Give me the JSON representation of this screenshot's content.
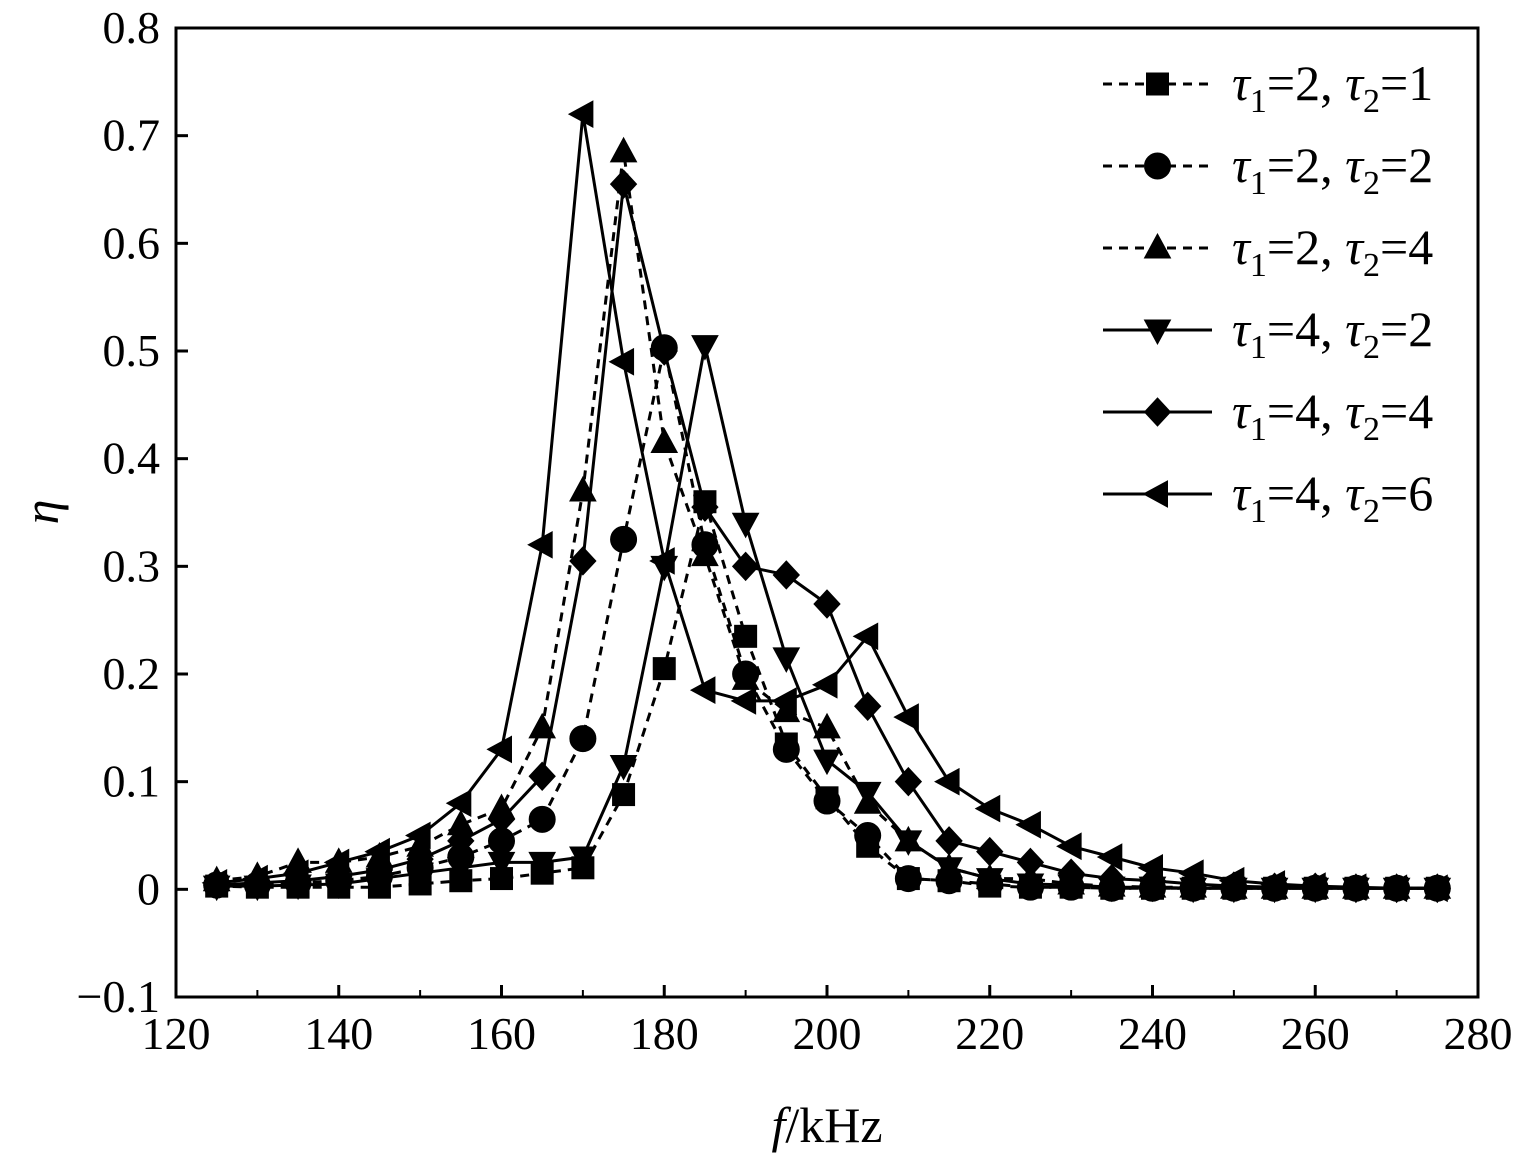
{
  "chart_data": {
    "type": "line",
    "title": "",
    "xlabel_var": "f",
    "xlabel_unit": "/kHz",
    "ylabel": "η",
    "xlim": [
      120,
      280
    ],
    "ylim": [
      -0.1,
      0.8
    ],
    "x_ticks": [
      "120",
      "140",
      "160",
      "180",
      "200",
      "220",
      "240",
      "260",
      "280"
    ],
    "y_ticks": [
      "−0.1",
      "0",
      "0.1",
      "0.2",
      "0.3",
      "0.4",
      "0.5",
      "0.6",
      "0.7",
      "0.8"
    ],
    "grid": false,
    "legend_position": "top-right",
    "x": [
      125,
      130,
      135,
      140,
      145,
      150,
      155,
      160,
      165,
      170,
      175,
      180,
      185,
      190,
      195,
      200,
      205,
      210,
      215,
      220,
      225,
      230,
      235,
      240,
      245,
      250,
      255,
      260,
      265,
      270,
      275
    ],
    "series": [
      {
        "legend": {
          "t1": "1",
          "v1": "=2, ",
          "t2": "2",
          "v2": "=1"
        },
        "marker": "square",
        "line": "dashed",
        "values": [
          0.003,
          0.002,
          0.002,
          0.002,
          0.002,
          0.005,
          0.008,
          0.01,
          0.015,
          0.02,
          0.088,
          0.205,
          0.36,
          0.235,
          0.135,
          0.085,
          0.04,
          0.01,
          0.008,
          0.003,
          0.002,
          0.002,
          0.001,
          0.001,
          0.001,
          0.001,
          0.001,
          0.001,
          0.001,
          0.001,
          0.001
        ]
      },
      {
        "legend": {
          "t1": "1",
          "v1": "=2, ",
          "t2": "2",
          "v2": "=2"
        },
        "marker": "circle",
        "line": "dashed",
        "values": [
          0.004,
          0.004,
          0.006,
          0.008,
          0.012,
          0.02,
          0.03,
          0.045,
          0.065,
          0.14,
          0.325,
          0.503,
          0.32,
          0.2,
          0.13,
          0.082,
          0.05,
          0.01,
          0.008,
          0.005,
          0.002,
          0.002,
          0.001,
          0.001,
          0.001,
          0.001,
          0.001,
          0.001,
          0.001,
          0.001,
          0.001
        ]
      },
      {
        "legend": {
          "t1": "1",
          "v1": "=2, ",
          "t2": "2",
          "v2": "=4"
        },
        "marker": "triangle-up",
        "line": "dashed",
        "values": [
          0.008,
          0.012,
          0.025,
          0.025,
          0.03,
          0.04,
          0.06,
          0.075,
          0.15,
          0.37,
          0.685,
          0.415,
          0.31,
          0.195,
          0.165,
          0.15,
          0.08,
          0.045,
          0.02,
          0.01,
          0.01,
          0.005,
          0.003,
          0.002,
          0.002,
          0.001,
          0.001,
          0.001,
          0.001,
          0.001,
          0.001
        ]
      },
      {
        "legend": {
          "t1": "1",
          "v1": "=4, ",
          "t2": "2",
          "v2": "=2"
        },
        "marker": "triangle-down",
        "line": "solid",
        "values": [
          0.003,
          0.003,
          0.004,
          0.005,
          0.01,
          0.015,
          0.02,
          0.025,
          0.025,
          0.03,
          0.115,
          0.3,
          0.505,
          0.34,
          0.215,
          0.12,
          0.09,
          0.045,
          0.02,
          0.01,
          0.005,
          0.004,
          0.002,
          0.002,
          0.001,
          0.001,
          0.001,
          0.001,
          0.001,
          0.001,
          0.001
        ]
      },
      {
        "legend": {
          "t1": "1",
          "v1": "=4, ",
          "t2": "2",
          "v2": "=4"
        },
        "marker": "diamond",
        "line": "solid",
        "values": [
          0.004,
          0.006,
          0.008,
          0.012,
          0.018,
          0.028,
          0.045,
          0.065,
          0.105,
          0.305,
          0.655,
          0.5,
          0.355,
          0.3,
          0.292,
          0.265,
          0.17,
          0.1,
          0.045,
          0.035,
          0.025,
          0.015,
          0.01,
          0.008,
          0.005,
          0.003,
          0.002,
          0.002,
          0.001,
          0.001,
          0.001
        ]
      },
      {
        "legend": {
          "t1": "1",
          "v1": "=4, ",
          "t2": "2",
          "v2": "=6"
        },
        "marker": "triangle-left",
        "line": "solid",
        "values": [
          0.006,
          0.01,
          0.015,
          0.025,
          0.035,
          0.05,
          0.08,
          0.13,
          0.32,
          0.72,
          0.49,
          0.305,
          0.185,
          0.175,
          0.175,
          0.19,
          0.235,
          0.16,
          0.1,
          0.075,
          0.06,
          0.04,
          0.03,
          0.02,
          0.015,
          0.008,
          0.005,
          0.003,
          0.002,
          0.001,
          0.001
        ]
      }
    ]
  }
}
